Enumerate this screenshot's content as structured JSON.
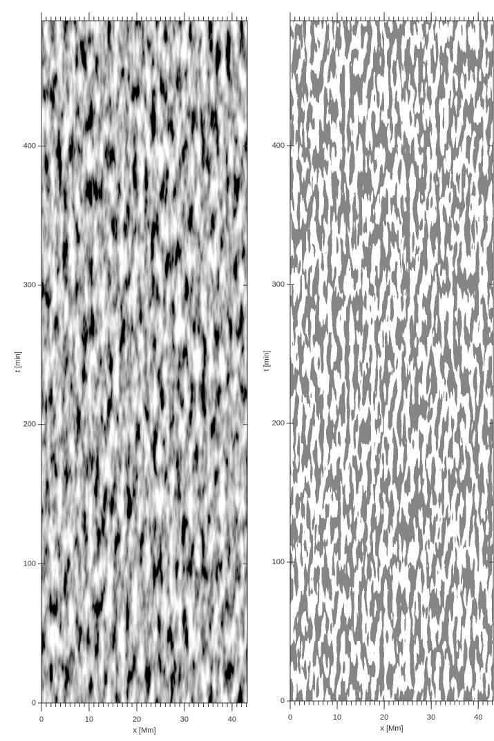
{
  "chart_data": [
    {
      "type": "image",
      "xlabel": "x [Mm]",
      "ylabel": "t [min]",
      "xlim": [
        0,
        43.2
      ],
      "ylim": [
        0,
        490
      ],
      "xticks": [
        0,
        10,
        20,
        30,
        40
      ],
      "yticks": [
        0,
        100,
        200,
        300,
        400
      ],
      "style": "grayscale"
    },
    {
      "type": "image",
      "xlabel": "x [Mm]",
      "ylabel": "t [min]",
      "xlim": [
        0,
        43.2
      ],
      "ylim": [
        0,
        490
      ],
      "xticks": [
        0,
        10,
        20,
        30,
        40
      ],
      "yticks": [
        0,
        100,
        200,
        300,
        400
      ],
      "style": "binary"
    }
  ]
}
